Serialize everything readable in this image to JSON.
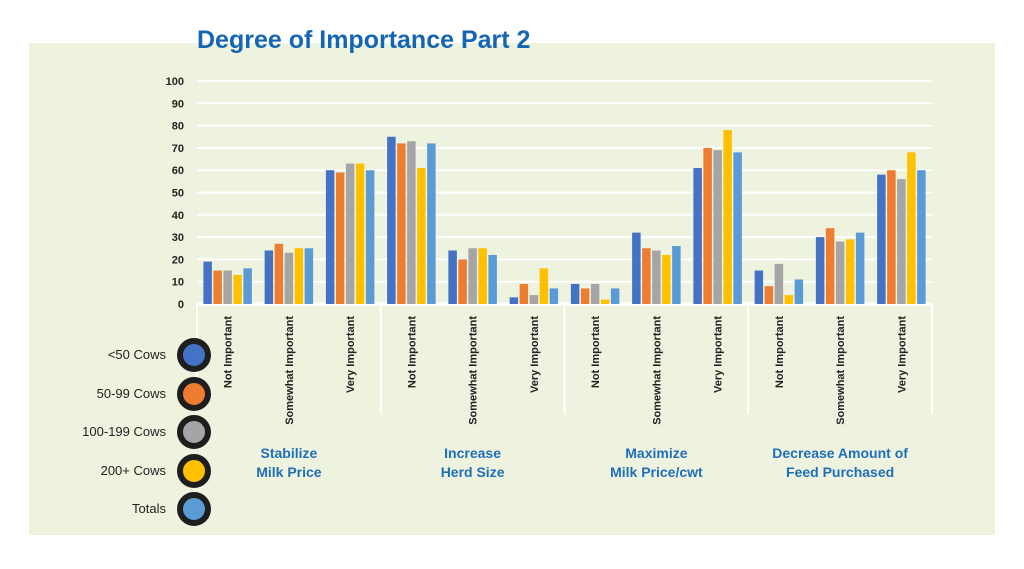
{
  "chart_data": {
    "type": "bar",
    "title": "Degree of Importance Part 2",
    "ylim": [
      0,
      100
    ],
    "yticks": [
      "0",
      "10",
      "20",
      "30",
      "40",
      "50",
      "60",
      "70",
      "80",
      "90",
      "100"
    ],
    "grid": true,
    "legend_position": "left",
    "groups": [
      {
        "label_lines": [
          "Stabilize",
          "Milk Price"
        ]
      },
      {
        "label_lines": [
          "Increase",
          "Herd Size"
        ]
      },
      {
        "label_lines": [
          "Maximize",
          "Milk Price/cwt"
        ]
      },
      {
        "label_lines": [
          "Decrease Amount of",
          "Feed Purchased"
        ]
      }
    ],
    "categories": [
      "Not Important",
      "Somewhat Important",
      "Very Important",
      "Not Important",
      "Somewhat Important",
      "Very Important",
      "Not Important",
      "Somewhat Important",
      "Very Important",
      "Not Important",
      "Somewhat Important",
      "Very Important"
    ],
    "series": [
      {
        "name": "<50 Cows",
        "color": "#4472c4",
        "values": [
          19,
          24,
          60,
          75,
          24,
          3,
          9,
          32,
          61,
          15,
          30,
          58
        ]
      },
      {
        "name": "50-99 Cows",
        "color": "#ed7d31",
        "values": [
          15,
          27,
          59,
          72,
          20,
          9,
          7,
          25,
          70,
          8,
          34,
          60
        ]
      },
      {
        "name": "100-199 Cows",
        "color": "#a5a5a5",
        "values": [
          15,
          23,
          63,
          73,
          25,
          4,
          9,
          24,
          69,
          18,
          28,
          56
        ]
      },
      {
        "name": "200+ Cows",
        "color": "#ffc000",
        "values": [
          13,
          25,
          63,
          61,
          25,
          16,
          2,
          22,
          78,
          4,
          29,
          68
        ]
      },
      {
        "name": "Totals",
        "color": "#5b9bd5",
        "values": [
          16,
          25,
          60,
          72,
          22,
          7,
          7,
          26,
          68,
          11,
          32,
          60
        ]
      }
    ]
  },
  "colors": {
    "background": "#eef3df",
    "gridline": "#ffffff",
    "title": "#1565b5",
    "group_label": "#1f6fb8"
  }
}
